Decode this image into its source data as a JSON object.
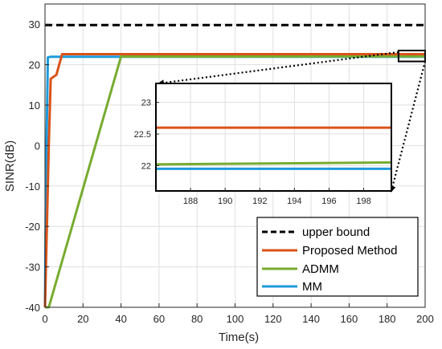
{
  "chart_data": {
    "type": "line",
    "xlabel": "Time(s)",
    "ylabel": "SINR(dB)",
    "xlim": [
      0,
      200
    ],
    "ylim": [
      -40,
      35
    ],
    "xticks": [
      0,
      20,
      40,
      60,
      80,
      100,
      120,
      140,
      160,
      180,
      200
    ],
    "yticks": [
      -40,
      -30,
      -20,
      -10,
      0,
      10,
      20,
      30
    ],
    "grid": true,
    "legend_position": "bottom-right",
    "series": [
      {
        "name": "upper bound",
        "color": "#000000",
        "style": "dashed",
        "x": [
          0,
          200
        ],
        "y": [
          29.8,
          29.8
        ]
      },
      {
        "name": "Proposed Method",
        "color": "#D95319",
        "style": "solid",
        "x": [
          0,
          2,
          3,
          6,
          9,
          200
        ],
        "y": [
          -40,
          0,
          16.5,
          17.5,
          22.6,
          22.6
        ]
      },
      {
        "name": "ADMM",
        "color": "#77AC30",
        "style": "solid",
        "x": [
          0,
          2,
          40,
          200
        ],
        "y": [
          -40,
          -40,
          22.0,
          22.05
        ]
      },
      {
        "name": "MM",
        "color": "#1E9BDC",
        "style": "solid",
        "x": [
          0,
          0.5,
          1.5,
          3,
          200
        ],
        "y": [
          -40,
          -10,
          21.8,
          21.95,
          21.95
        ]
      }
    ],
    "inset": {
      "xlim": [
        186,
        199.6
      ],
      "ylim": [
        21.6,
        23.3
      ],
      "xticks": [
        188,
        190,
        192,
        194,
        196,
        198
      ],
      "yticks": [
        22,
        22.5,
        23
      ],
      "yticklabels": [
        "22",
        "22.5",
        "23"
      ],
      "grid": true,
      "series": [
        {
          "name": "Proposed Method",
          "color": "#D95319",
          "x": [
            186,
            199.6
          ],
          "y": [
            22.6,
            22.6
          ]
        },
        {
          "name": "ADMM",
          "color": "#77AC30",
          "x": [
            186,
            199.6
          ],
          "y": [
            22.02,
            22.05
          ]
        },
        {
          "name": "MM",
          "color": "#1E9BDC",
          "x": [
            186,
            199.6
          ],
          "y": [
            21.95,
            21.95
          ]
        }
      ]
    },
    "zoom_box": {
      "xlim": [
        186,
        200
      ],
      "ylim": [
        20.8,
        23.5
      ]
    }
  }
}
